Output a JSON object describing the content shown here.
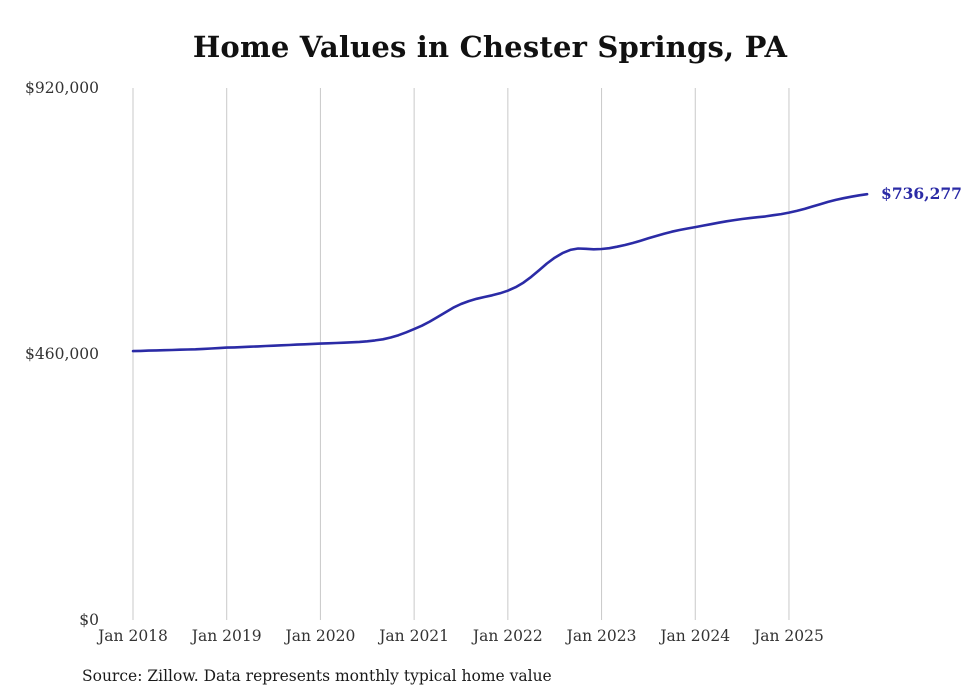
{
  "chart": {
    "title": "Home Values in Chester Springs, PA",
    "source_note": "Source: Zillow. Data represents monthly typical home value",
    "end_label": "$736,277",
    "line_color": "#2b2ba6",
    "grid_color": "#c9c9c9",
    "tick_color": "#333333",
    "chart_data": {
      "type": "line",
      "series_name": "Monthly typical home value",
      "x_start": "Jan 2018",
      "x_end": "Nov 2025",
      "x_tick_labels": [
        "Jan 2018",
        "Jan 2019",
        "Jan 2020",
        "Jan 2021",
        "Jan 2022",
        "Jan 2023",
        "Jan 2024",
        "Jan 2025"
      ],
      "y_ticks": [
        {
          "value": 0,
          "label": "$0"
        },
        {
          "value": 460000,
          "label": "$460,000"
        },
        {
          "value": 920000,
          "label": "$920,000"
        }
      ],
      "y_max": 920000,
      "grid": "vertical-only",
      "legend": "none",
      "final_value": 736277,
      "values": [
        465000,
        465400,
        465800,
        466200,
        466600,
        467000,
        467400,
        467800,
        468200,
        468800,
        469500,
        470200,
        471000,
        471500,
        472000,
        472600,
        473200,
        473800,
        474400,
        475000,
        475600,
        476200,
        476800,
        477400,
        478000,
        478500,
        479000,
        479500,
        480200,
        481000,
        482000,
        483500,
        485500,
        488500,
        492500,
        497500,
        503000,
        509000,
        516000,
        524000,
        532000,
        540000,
        546500,
        551500,
        555500,
        558500,
        561500,
        565000,
        569500,
        575500,
        583500,
        593500,
        605000,
        616500,
        626500,
        634500,
        640000,
        642500,
        642000,
        641000,
        641500,
        643000,
        645500,
        648500,
        652000,
        656000,
        660000,
        664000,
        668000,
        671500,
        674500,
        677000,
        679500,
        682000,
        684500,
        687000,
        689500,
        691500,
        693500,
        695000,
        696500,
        698000,
        700000,
        702000,
        704500,
        707500,
        711000,
        715000,
        719000,
        723000,
        726500,
        729500,
        732000,
        734500,
        736277
      ]
    }
  }
}
